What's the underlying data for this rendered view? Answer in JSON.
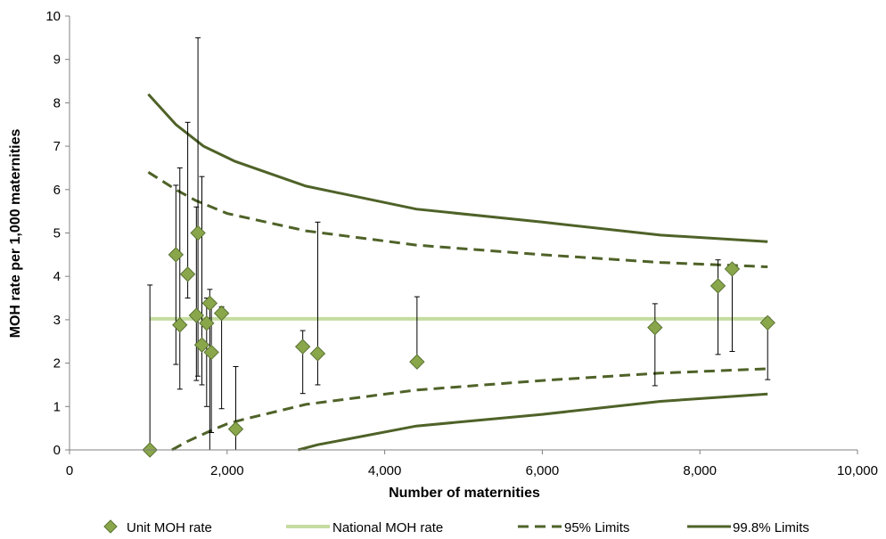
{
  "chart_data": {
    "type": "scatter",
    "xlabel": "Number of maternities",
    "ylabel": "MOH rate per 1,000  maternities",
    "xlim": [
      0,
      10000
    ],
    "ylim": [
      0,
      10
    ],
    "x_ticks": [
      "0",
      "2,000",
      "4,000",
      "6,000",
      "8,000",
      "10,000"
    ],
    "y_ticks": [
      "0",
      "1",
      "2",
      "3",
      "4",
      "5",
      "6",
      "7",
      "8",
      "9",
      "10"
    ],
    "grid": false,
    "legend_position": "bottom",
    "legend": [
      "Unit MOH rate",
      "National MOH rate",
      "95% Limits",
      "99.8% Limits"
    ],
    "colors": {
      "point_fill": "#8aa64b",
      "point_stroke": "#5a7332",
      "national": "#c5dca0",
      "limits": "#4f6228",
      "error_bar": "#000000",
      "axis": "#808080"
    },
    "unit_points": [
      {
        "x": 1020,
        "y": 0.0,
        "low": 0.0,
        "high": 3.8
      },
      {
        "x": 1350,
        "y": 4.5,
        "low": 1.97,
        "high": 6.1
      },
      {
        "x": 1400,
        "y": 2.88,
        "low": 1.4,
        "high": 6.5
      },
      {
        "x": 1500,
        "y": 4.05,
        "low": 3.5,
        "high": 7.55
      },
      {
        "x": 1610,
        "y": 3.1,
        "low": 1.6,
        "high": 5.6
      },
      {
        "x": 1630,
        "y": 5.0,
        "low": 1.7,
        "high": 9.5
      },
      {
        "x": 1680,
        "y": 2.42,
        "low": 1.5,
        "high": 6.3
      },
      {
        "x": 1740,
        "y": 2.92,
        "low": 1.0,
        "high": 3.5
      },
      {
        "x": 1780,
        "y": 3.38,
        "low": 0.0,
        "high": 3.7
      },
      {
        "x": 1800,
        "y": 2.25,
        "low": 0.4,
        "high": 3.3
      },
      {
        "x": 1930,
        "y": 3.15,
        "low": 0.95,
        "high": 3.3
      },
      {
        "x": 2110,
        "y": 0.48,
        "low": 0.0,
        "high": 1.92
      },
      {
        "x": 2960,
        "y": 2.38,
        "low": 1.3,
        "high": 2.75
      },
      {
        "x": 3150,
        "y": 2.22,
        "low": 1.5,
        "high": 5.25
      },
      {
        "x": 4410,
        "y": 2.03,
        "low": 2.03,
        "high": 3.53
      },
      {
        "x": 7430,
        "y": 2.82,
        "low": 1.48,
        "high": 3.37
      },
      {
        "x": 8230,
        "y": 3.78,
        "low": 2.2,
        "high": 4.38
      },
      {
        "x": 8410,
        "y": 4.17,
        "low": 2.27,
        "high": 4.17
      },
      {
        "x": 8860,
        "y": 2.93,
        "low": 1.62,
        "high": 3.05
      }
    ],
    "national_rate": {
      "x": [
        1020,
        8860
      ],
      "y": [
        3.02,
        3.02
      ]
    },
    "limits_95_upper": {
      "x": [
        1000,
        1350,
        1600,
        2000,
        3000,
        4400,
        6000,
        7500,
        8860
      ],
      "y": [
        6.4,
        6.0,
        5.75,
        5.45,
        5.05,
        4.72,
        4.5,
        4.32,
        4.22
      ]
    },
    "limits_95_lower": {
      "x": [
        1300,
        1500,
        1800,
        2000,
        2200,
        3000,
        4400,
        6000,
        7500,
        8860
      ],
      "y": [
        0.0,
        0.2,
        0.45,
        0.6,
        0.7,
        1.05,
        1.38,
        1.6,
        1.77,
        1.87
      ]
    },
    "limits_998_upper": {
      "x": [
        1000,
        1350,
        1700,
        2100,
        3000,
        4400,
        6000,
        7500,
        8860
      ],
      "y": [
        8.2,
        7.5,
        7.0,
        6.65,
        6.08,
        5.55,
        5.25,
        4.95,
        4.8
      ]
    },
    "limits_998_lower": {
      "x": [
        2900,
        3150,
        4400,
        6000,
        7500,
        8860
      ],
      "y": [
        0.0,
        0.12,
        0.55,
        0.82,
        1.12,
        1.29
      ]
    }
  }
}
